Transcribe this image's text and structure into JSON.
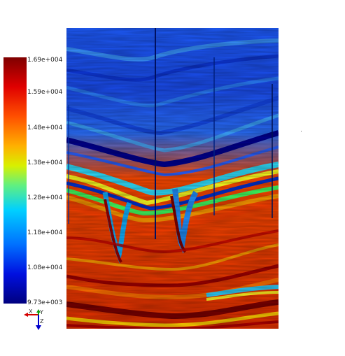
{
  "colorbar": {
    "ticks": [
      "1.69e+004",
      "1.59e+004",
      "1.48e+004",
      "1.38e+004",
      "1.28e+004",
      "1.18e+004",
      "1.08e+004",
      "9.73e+003"
    ]
  },
  "axes_triad": {
    "x_label": "X",
    "y_label": "Y",
    "z_label": "Z",
    "x_color": "#d40000",
    "y_color": "#10a010",
    "z_color": "#0000cc"
  },
  "seismic_section": {
    "colormap": "jet",
    "well_count": 4
  }
}
